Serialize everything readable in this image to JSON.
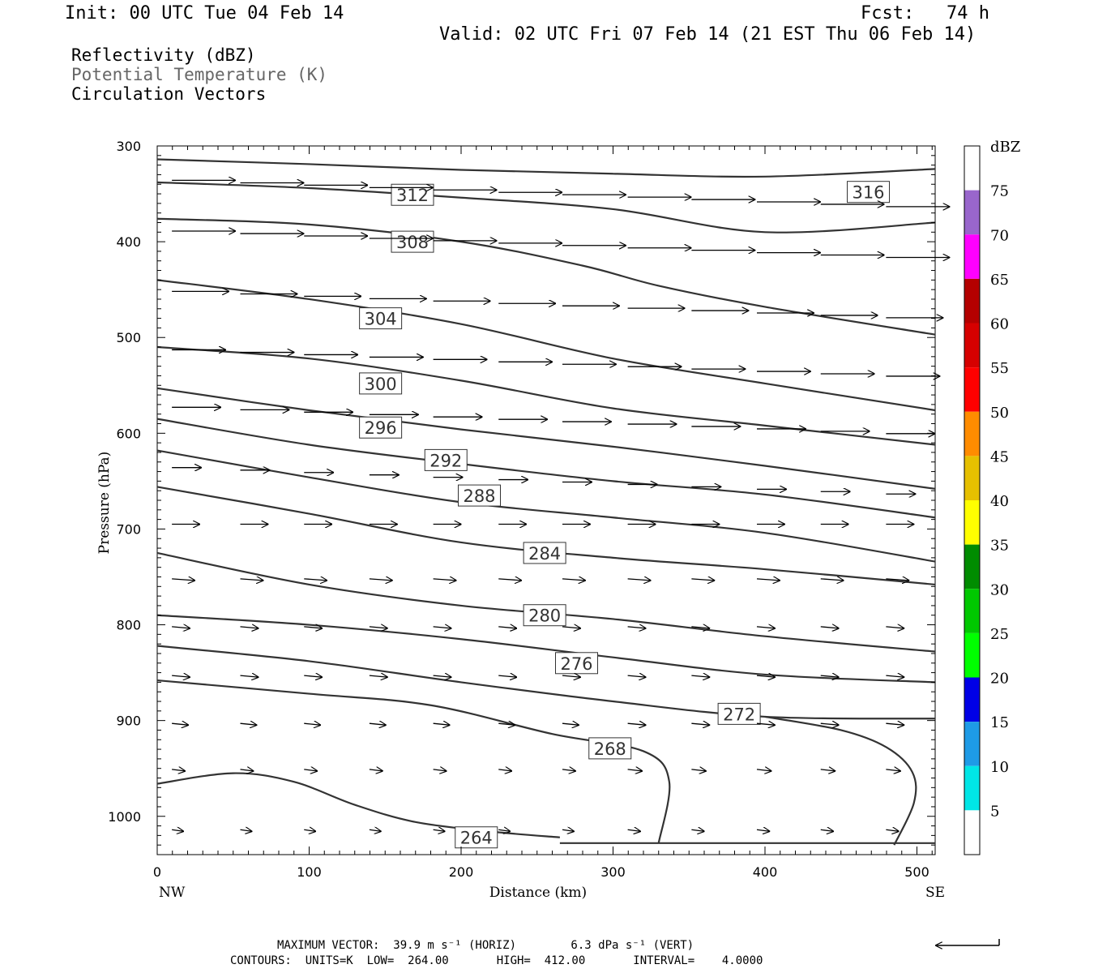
{
  "header": {
    "init": "Init: 00 UTC Tue 04 Feb 14",
    "fcst": "Fcst:   74 h",
    "valid": "Valid: 02 UTC Fri 07 Feb 14 (21 EST Thu 06 Feb 14)"
  },
  "fields": [
    {
      "label": "Reflectivity (dBZ)",
      "color": "#000000"
    },
    {
      "label": "Potential Temperature (K)",
      "color": "#666666"
    },
    {
      "label": "Circulation Vectors",
      "color": "#000000"
    }
  ],
  "footer": {
    "max_vector": "MAXIMUM VECTOR:  39.9 m s⁻¹ (HORIZ)        6.3 dPa s⁻¹ (VERT)",
    "contours": "CONTOURS:  UNITS=K  LOW=  264.00       HIGH=  412.00       INTERVAL=    4.0000"
  },
  "chart_data": {
    "type": "contour-cross-section",
    "xlabel": "Distance (km)",
    "ylabel": "Pressure (hPa)",
    "xlim": [
      0,
      512
    ],
    "ylim": [
      1040,
      300
    ],
    "x_ticks": [
      0,
      100,
      200,
      300,
      400,
      500
    ],
    "y_ticks": [
      300,
      400,
      500,
      600,
      700,
      800,
      900,
      1000
    ],
    "x_endpoints": {
      "left": "NW",
      "right": "SE"
    },
    "colorbar": {
      "unit": "dBZ",
      "levels": [
        5,
        10,
        15,
        20,
        25,
        30,
        35,
        40,
        45,
        50,
        55,
        60,
        65,
        70,
        75
      ],
      "colors": [
        "#ffffff",
        "#00e6e6",
        "#1e9be6",
        "#0000e6",
        "#00ff00",
        "#00c800",
        "#008c00",
        "#ffff00",
        "#e6c000",
        "#ff8c00",
        "#ff0000",
        "#d60000",
        "#b40000",
        "#ff00ff",
        "#9966cc",
        "#ffffff"
      ]
    },
    "theta_contours": [
      {
        "label": "316",
        "pts": [
          [
            0,
            314
          ],
          [
            100,
            319
          ],
          [
            200,
            325
          ],
          [
            300,
            329
          ],
          [
            400,
            332
          ],
          [
            512,
            324
          ]
        ],
        "label_at": [
          468,
          348
        ]
      },
      {
        "label": "312",
        "pts": [
          [
            0,
            338
          ],
          [
            100,
            344
          ],
          [
            200,
            354
          ],
          [
            300,
            366
          ],
          [
            400,
            390
          ],
          [
            512,
            380
          ]
        ],
        "label_at": [
          168,
          351
        ]
      },
      {
        "label": "308",
        "pts": [
          [
            0,
            376
          ],
          [
            100,
            382
          ],
          [
            200,
            400
          ],
          [
            280,
            425
          ],
          [
            330,
            446
          ],
          [
            400,
            468
          ],
          [
            512,
            497
          ]
        ],
        "label_at": [
          168,
          400
        ]
      },
      {
        "label": "304",
        "pts": [
          [
            0,
            440
          ],
          [
            100,
            460
          ],
          [
            200,
            486
          ],
          [
            300,
            522
          ],
          [
            400,
            548
          ],
          [
            512,
            576
          ]
        ],
        "label_at": [
          147,
          480
        ]
      },
      {
        "label": "300",
        "pts": [
          [
            0,
            510
          ],
          [
            100,
            522
          ],
          [
            200,
            545
          ],
          [
            300,
            574
          ],
          [
            400,
            592
          ],
          [
            512,
            612
          ]
        ],
        "label_at": [
          147,
          548
        ]
      },
      {
        "label": "296",
        "pts": [
          [
            0,
            553
          ],
          [
            100,
            576
          ],
          [
            200,
            596
          ],
          [
            300,
            614
          ],
          [
            400,
            634
          ],
          [
            512,
            658
          ]
        ],
        "label_at": [
          147,
          594
        ]
      },
      {
        "label": "292",
        "pts": [
          [
            0,
            585
          ],
          [
            100,
            612
          ],
          [
            200,
            632
          ],
          [
            300,
            650
          ],
          [
            400,
            664
          ],
          [
            512,
            688
          ]
        ],
        "label_at": [
          190,
          628
        ]
      },
      {
        "label": "288",
        "pts": [
          [
            0,
            618
          ],
          [
            100,
            646
          ],
          [
            200,
            672
          ],
          [
            300,
            688
          ],
          [
            400,
            704
          ],
          [
            512,
            734
          ]
        ],
        "label_at": [
          212,
          665
        ]
      },
      {
        "label": "284",
        "pts": [
          [
            0,
            656
          ],
          [
            100,
            684
          ],
          [
            200,
            714
          ],
          [
            300,
            730
          ],
          [
            400,
            742
          ],
          [
            512,
            758
          ]
        ],
        "label_at": [
          255,
          725
        ]
      },
      {
        "label": "280",
        "pts": [
          [
            0,
            725
          ],
          [
            100,
            758
          ],
          [
            200,
            780
          ],
          [
            300,
            794
          ],
          [
            400,
            812
          ],
          [
            512,
            828
          ]
        ],
        "label_at": [
          255,
          790
        ]
      },
      {
        "label": "276",
        "pts": [
          [
            0,
            790
          ],
          [
            100,
            800
          ],
          [
            200,
            815
          ],
          [
            300,
            834
          ],
          [
            400,
            852
          ],
          [
            512,
            860
          ]
        ],
        "label_at": [
          276,
          840
        ]
      },
      {
        "label": "272",
        "pts": [
          [
            0,
            822
          ],
          [
            100,
            838
          ],
          [
            200,
            860
          ],
          [
            300,
            880
          ],
          [
            400,
            896
          ],
          [
            512,
            898
          ]
        ],
        "label_at": [
          383,
          893
        ]
      },
      {
        "label": "268",
        "pts": [
          [
            0,
            858
          ],
          [
            100,
            872
          ],
          [
            180,
            884
          ],
          [
            260,
            914
          ],
          [
            320,
            932
          ],
          [
            337,
            964
          ],
          [
            330,
            1028
          ]
        ],
        "label_at": [
          298,
          929
        ]
      },
      {
        "label": "264",
        "pts": [
          [
            0,
            966
          ],
          [
            50,
            955
          ],
          [
            90,
            964
          ],
          [
            130,
            988
          ],
          [
            170,
            1006
          ],
          [
            220,
            1016
          ],
          [
            265,
            1022
          ]
        ],
        "label_at": [
          210,
          1022
        ]
      }
    ],
    "theta_272_right": [
      [
        400,
        896
      ],
      [
        450,
        910
      ],
      [
        480,
        928
      ],
      [
        497,
        954
      ],
      [
        498,
        986
      ],
      [
        485,
        1030
      ]
    ],
    "vector_scale": {
      "horiz": "39.9 m s⁻¹",
      "vert": "6.3 dPa s⁻¹"
    }
  }
}
